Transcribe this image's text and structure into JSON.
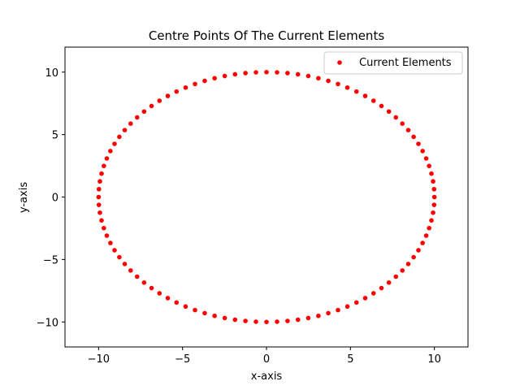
{
  "chart_data": {
    "type": "scatter",
    "title": "Centre Points Of The Current Elements",
    "xlabel": "x-axis",
    "ylabel": "y-axis",
    "xlim": [
      -12,
      12
    ],
    "ylim": [
      -12,
      12
    ],
    "xticks": [
      -10,
      -5,
      0,
      5,
      10
    ],
    "yticks": [
      -10,
      -5,
      0,
      5,
      10
    ],
    "xtick_labels": [
      "−10",
      "−5",
      "0",
      "5",
      "10"
    ],
    "ytick_labels": [
      "−10",
      "−5",
      "0",
      "5",
      "10"
    ],
    "grid": false,
    "legend_position": "top-right",
    "series": [
      {
        "name": "Current Elements",
        "color": "#ff0000",
        "marker": "circle",
        "shape": "circle",
        "center": [
          0,
          0
        ],
        "radius": 10,
        "point_count": 100
      }
    ]
  }
}
